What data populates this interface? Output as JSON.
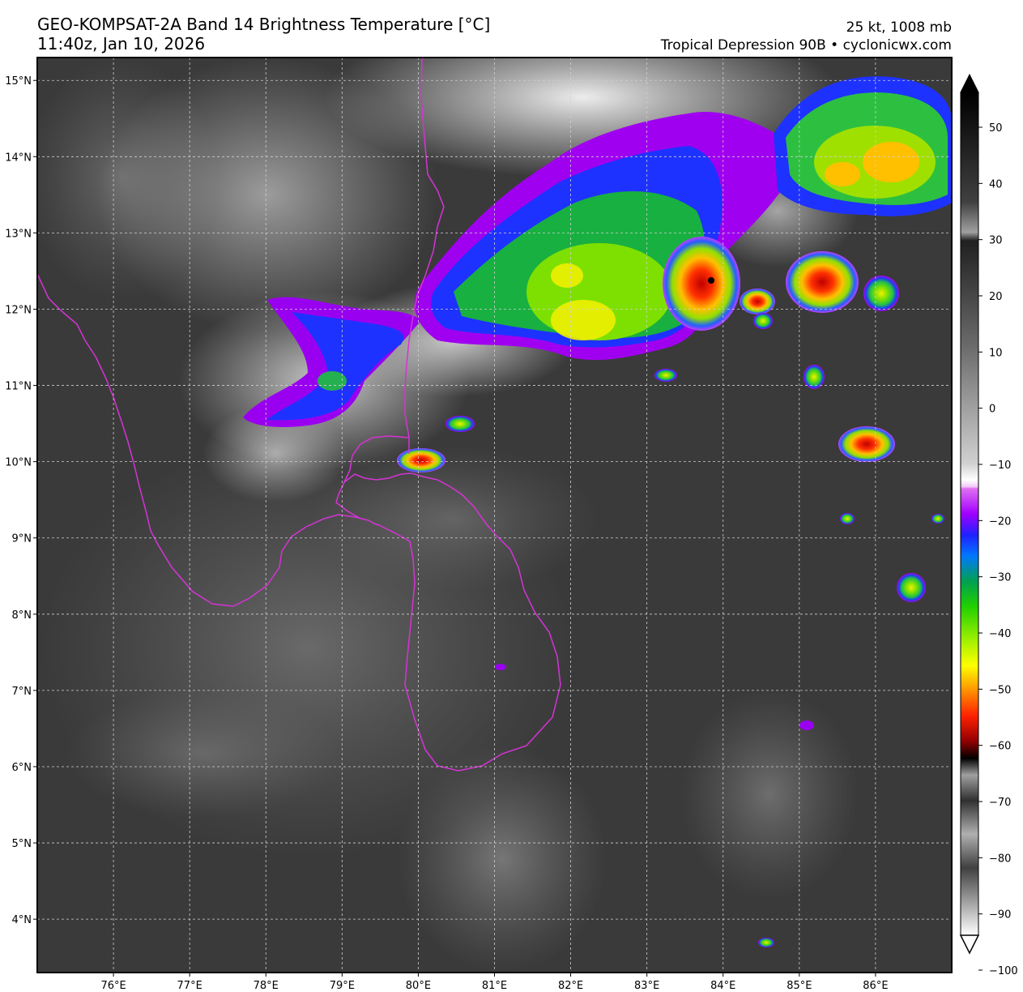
{
  "header": {
    "title": "GEO-KOMPSAT-2A Band 14 Brightness Temperature [°C]",
    "timestamp": "11:40z, Jan 10, 2026",
    "intensity": "25 kt, 1008 mb",
    "storm": "Tropical Depression 90B • cyclonicwx.com"
  },
  "map": {
    "lon_range": [
      75.0,
      87.0
    ],
    "lat_range": [
      3.3,
      15.3
    ],
    "lon_ticks": [
      {
        "value": 76,
        "label": "76°E"
      },
      {
        "value": 77,
        "label": "77°E"
      },
      {
        "value": 78,
        "label": "78°E"
      },
      {
        "value": 79,
        "label": "79°E"
      },
      {
        "value": 80,
        "label": "80°E"
      },
      {
        "value": 81,
        "label": "81°E"
      },
      {
        "value": 82,
        "label": "82°E"
      },
      {
        "value": 83,
        "label": "83°E"
      },
      {
        "value": 84,
        "label": "84°E"
      },
      {
        "value": 85,
        "label": "85°E"
      },
      {
        "value": 86,
        "label": "86°E"
      }
    ],
    "lat_ticks": [
      {
        "value": 15,
        "label": "15°N"
      },
      {
        "value": 14,
        "label": "14°N"
      },
      {
        "value": 13,
        "label": "13°N"
      },
      {
        "value": 12,
        "label": "12°N"
      },
      {
        "value": 11,
        "label": "11°N"
      },
      {
        "value": 10,
        "label": "10°N"
      },
      {
        "value": 9,
        "label": "9°N"
      },
      {
        "value": 8,
        "label": "8°N"
      },
      {
        "value": 7,
        "label": "7°N"
      },
      {
        "value": 6,
        "label": "6°N"
      },
      {
        "value": 5,
        "label": "5°N"
      },
      {
        "value": 4,
        "label": "4°N"
      }
    ],
    "coastline_color": "#d633d6",
    "storm_center": {
      "lon": 83.85,
      "lat": 12.35
    }
  },
  "colorbar": {
    "range": [
      -100,
      50
    ],
    "ticks": [
      {
        "value": 50,
        "label": "50"
      },
      {
        "value": 40,
        "label": "40"
      },
      {
        "value": 30,
        "label": "30"
      },
      {
        "value": 20,
        "label": "20"
      },
      {
        "value": 10,
        "label": "10"
      },
      {
        "value": 0,
        "label": "0"
      },
      {
        "value": -10,
        "label": "−10"
      },
      {
        "value": -20,
        "label": "−20"
      },
      {
        "value": -30,
        "label": "−30"
      },
      {
        "value": -40,
        "label": "−40"
      },
      {
        "value": -50,
        "label": "−50"
      },
      {
        "value": -60,
        "label": "−60"
      },
      {
        "value": -70,
        "label": "−70"
      },
      {
        "value": -80,
        "label": "−80"
      },
      {
        "value": -90,
        "label": "−90"
      },
      {
        "value": -100,
        "label": "−100"
      }
    ]
  }
}
